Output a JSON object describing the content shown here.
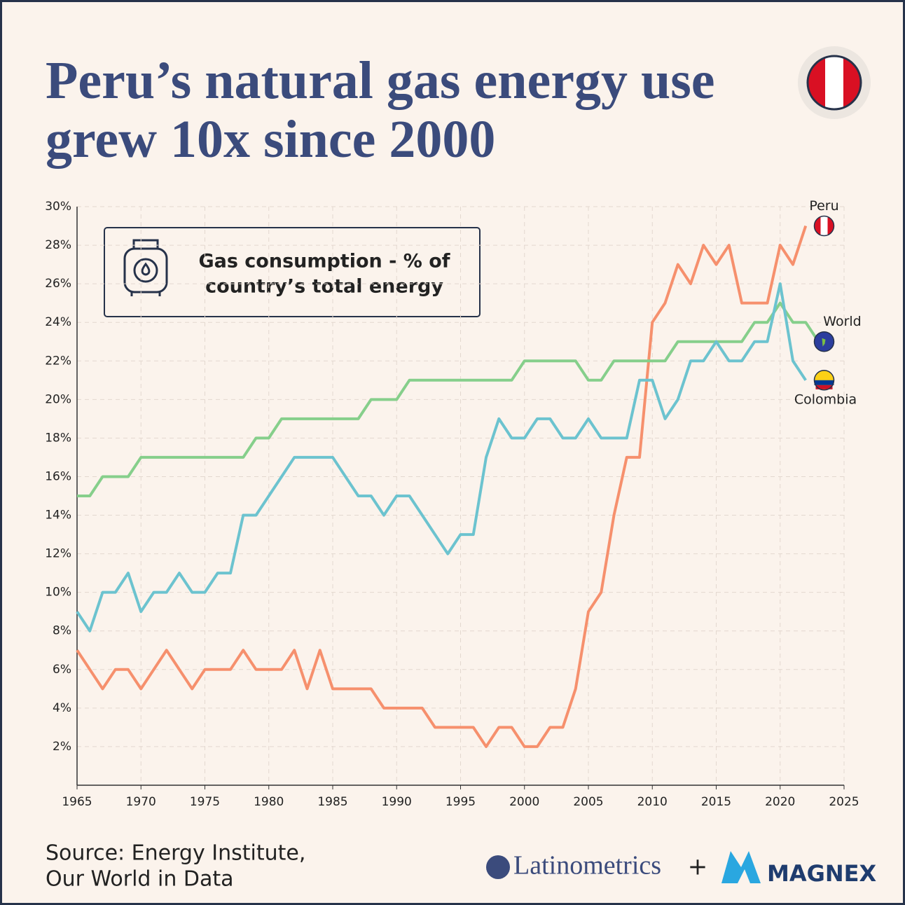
{
  "chart_data": {
    "type": "line",
    "title": "Peru’s natural gas energy use grew 10x since 2000",
    "annotation": [
      "Gas consumption - % of",
      "country’s total energy"
    ],
    "x": [
      1965,
      1966,
      1967,
      1968,
      1969,
      1970,
      1971,
      1972,
      1973,
      1974,
      1975,
      1976,
      1977,
      1978,
      1979,
      1980,
      1981,
      1982,
      1983,
      1984,
      1985,
      1986,
      1987,
      1988,
      1989,
      1990,
      1991,
      1992,
      1993,
      1994,
      1995,
      1996,
      1997,
      1998,
      1999,
      2000,
      2001,
      2002,
      2003,
      2004,
      2005,
      2006,
      2007,
      2008,
      2009,
      2010,
      2011,
      2012,
      2013,
      2014,
      2015,
      2016,
      2017,
      2018,
      2019,
      2020,
      2021,
      2022,
      2023
    ],
    "series": [
      {
        "name": "Peru",
        "color": "#f6906d",
        "values": [
          7,
          6,
          5,
          6,
          6,
          5,
          6,
          7,
          6,
          5,
          6,
          6,
          6,
          7,
          6,
          6,
          6,
          7,
          5,
          7,
          5,
          5,
          5,
          5,
          4,
          4,
          4,
          4,
          3,
          3,
          3,
          3,
          2,
          3,
          3,
          2,
          2,
          3,
          3,
          5,
          9,
          10,
          14,
          17,
          17,
          24,
          25,
          27,
          26,
          28,
          27,
          28,
          25,
          25,
          25,
          28,
          27,
          29,
          null
        ]
      },
      {
        "name": "World",
        "color": "#86cf8b",
        "values": [
          15,
          15,
          16,
          16,
          16,
          17,
          17,
          17,
          17,
          17,
          17,
          17,
          17,
          17,
          18,
          18,
          19,
          19,
          19,
          19,
          19,
          19,
          19,
          20,
          20,
          20,
          21,
          21,
          21,
          21,
          21,
          21,
          21,
          21,
          21,
          22,
          22,
          22,
          22,
          22,
          21,
          21,
          22,
          22,
          22,
          22,
          22,
          23,
          23,
          23,
          23,
          23,
          23,
          24,
          24,
          25,
          24,
          24,
          23
        ]
      },
      {
        "name": "Colombia",
        "color": "#6cc3cf",
        "values": [
          9,
          8,
          10,
          10,
          11,
          9,
          10,
          10,
          11,
          10,
          10,
          11,
          11,
          14,
          14,
          15,
          16,
          17,
          17,
          17,
          17,
          16,
          15,
          15,
          14,
          15,
          15,
          14,
          13,
          12,
          13,
          13,
          17,
          19,
          18,
          18,
          19,
          19,
          18,
          18,
          19,
          18,
          18,
          18,
          21,
          21,
          19,
          20,
          22,
          22,
          23,
          22,
          22,
          23,
          23,
          26,
          22,
          21,
          null
        ]
      }
    ],
    "xlim": [
      1965,
      2025
    ],
    "xticks": [
      1965,
      1970,
      1975,
      1980,
      1985,
      1990,
      1995,
      2000,
      2005,
      2010,
      2015,
      2020,
      2025
    ],
    "ylim": [
      0,
      30
    ],
    "yticks": [
      {
        "value": 2,
        "label": "2%"
      },
      {
        "value": 4,
        "label": "4%"
      },
      {
        "value": 6,
        "label": "6%"
      },
      {
        "value": 8,
        "label": "8%"
      },
      {
        "value": 10,
        "label": "10%"
      },
      {
        "value": 12,
        "label": "12%"
      },
      {
        "value": 14,
        "label": "14%"
      },
      {
        "value": 16,
        "label": "16%"
      },
      {
        "value": 18,
        "label": "18%"
      },
      {
        "value": 20,
        "label": "20%"
      },
      {
        "value": 22,
        "label": "22%"
      },
      {
        "value": 24,
        "label": "24%"
      },
      {
        "value": 26,
        "label": "26%"
      },
      {
        "value": 28,
        "label": "28%"
      },
      {
        "value": 30,
        "label": "30%"
      }
    ],
    "grid": true
  },
  "footer": {
    "source": [
      "Source: Energy Institute,",
      "Our World in Data"
    ],
    "brand1": "Latinometrics",
    "plus": "+",
    "brand2": "MAGNEX"
  }
}
